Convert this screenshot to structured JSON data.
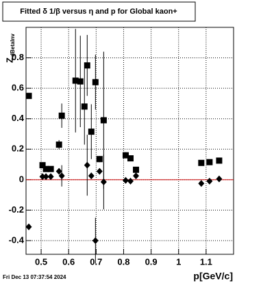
{
  "chart_data": {
    "type": "scatter",
    "title": "Fitted δ 1/β versus η and p for Global kaon+",
    "xlabel": "p[GeV/c]",
    "ylabel": "Z",
    "ylabel_subscript": "dBetaInv",
    "footer": "Fri Dec 13 07:37:54 2024",
    "xlim": [
      0.445,
      1.2
    ],
    "ylim": [
      -0.49,
      1.0
    ],
    "xticks": [
      0.5,
      0.6,
      0.7,
      0.8,
      0.9,
      1,
      1.1
    ],
    "yticks": [
      -0.4,
      -0.2,
      0,
      0.2,
      0.4,
      0.6,
      0.8
    ],
    "grid": true,
    "reference_line": 0,
    "reference_color": "#cc0000",
    "series": [
      {
        "marker": "square",
        "color": "#000000",
        "x": [
          0.455,
          0.505,
          0.5175,
          0.535,
          0.565,
          0.575,
          0.625,
          0.6425,
          0.6575,
          0.6675,
          0.6825,
          0.6975,
          0.7125,
          0.7275,
          0.8075,
          0.825,
          0.845,
          1.0825,
          1.1125,
          1.1475
        ],
        "values": [
          0.55,
          0.095,
          0.07,
          0.07,
          0.23,
          0.42,
          0.65,
          0.645,
          0.48,
          0.75,
          0.315,
          0.64,
          0.135,
          0.39,
          0.16,
          0.14,
          0.065,
          0.11,
          0.115,
          0.125
        ],
        "errors": [
          0.01,
          0.01,
          0.01,
          0.01,
          0.03,
          0.08,
          0.34,
          0.3,
          0.25,
          0.2,
          0.18,
          0.18,
          0.02,
          0.45,
          0.02,
          0.01,
          0.01,
          0.01,
          0.01,
          0.01
        ]
      },
      {
        "marker": "diamond",
        "color": "#000000",
        "x": [
          0.455,
          0.505,
          0.5175,
          0.535,
          0.565,
          0.575,
          0.6675,
          0.6825,
          0.6975,
          0.7125,
          0.7275,
          0.8075,
          0.825,
          0.845,
          1.0825,
          1.1125,
          1.1475
        ],
        "values": [
          -0.31,
          0.02,
          0.02,
          0.02,
          0.055,
          0.025,
          0.095,
          0.025,
          -0.4,
          0.055,
          -0.015,
          -0.005,
          -0.01,
          0.025,
          -0.025,
          -0.01,
          0.005
        ],
        "errors": [
          0.01,
          0.01,
          0.01,
          0.01,
          0.02,
          0.07,
          0.2,
          0.02,
          0.15,
          0.02,
          0.18,
          0.01,
          0.01,
          0.01,
          0.01,
          0.01,
          0.01
        ]
      }
    ]
  }
}
